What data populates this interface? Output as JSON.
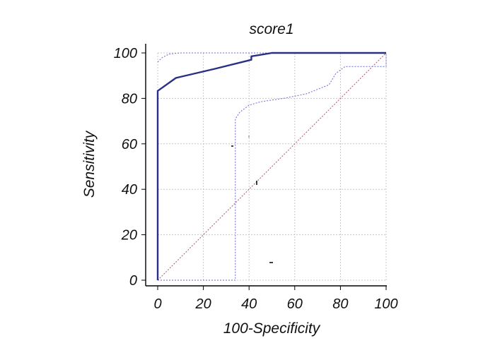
{
  "chart_data": {
    "type": "line",
    "title": "score1",
    "xlabel": "100-Specificity",
    "ylabel": "Sensitivity",
    "xlim": [
      0,
      100
    ],
    "ylim": [
      0,
      100
    ],
    "xticks": [
      "0",
      "20",
      "40",
      "60",
      "80",
      "100"
    ],
    "yticks": [
      "0",
      "20",
      "40",
      "60",
      "80",
      "100"
    ],
    "grid": true,
    "series": [
      {
        "role": "roc-curve",
        "color": "#2a2f86",
        "style": "solid",
        "x": [
          0,
          0,
          8,
          25,
          41,
          41,
          50,
          100
        ],
        "y": [
          0,
          83.3,
          89,
          93,
          97,
          98.5,
          100,
          100
        ]
      },
      {
        "role": "upper-confidence-bound",
        "color": "#6a6ad0",
        "style": "dotted",
        "x": [
          0,
          2,
          5,
          10,
          20,
          50,
          100
        ],
        "y": [
          96,
          98,
          99.5,
          100,
          100,
          100,
          100
        ]
      },
      {
        "role": "lower-confidence-bound",
        "color": "#6a6ad0",
        "style": "dotted",
        "x": [
          0,
          34,
          34,
          36,
          40,
          45,
          55,
          65,
          75,
          78,
          82,
          100,
          100
        ],
        "y": [
          0,
          0,
          71,
          74,
          77,
          78.5,
          80,
          82,
          86,
          91,
          94,
          94,
          100
        ]
      },
      {
        "role": "reference-diagonal",
        "color": "#b05070",
        "style": "dotted",
        "x": [
          0,
          100
        ],
        "y": [
          0,
          100
        ]
      }
    ]
  }
}
